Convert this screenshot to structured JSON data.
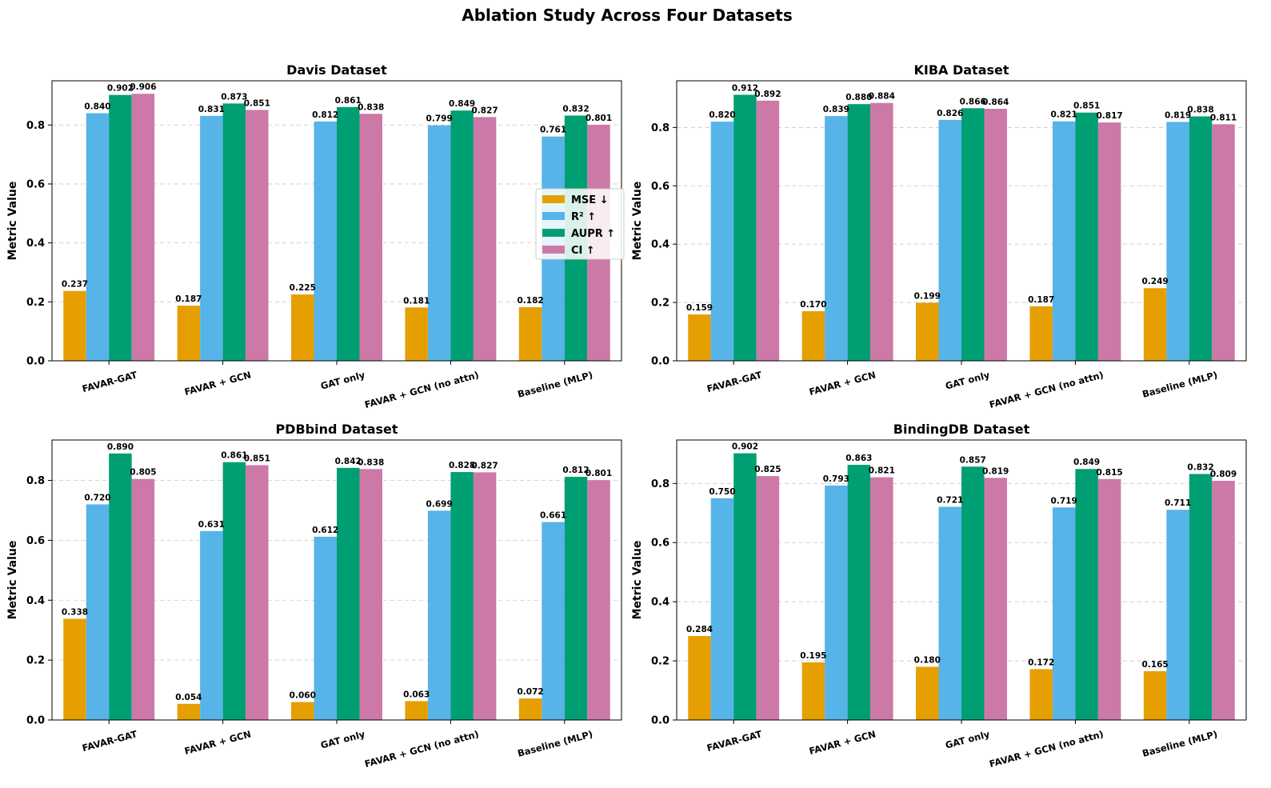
{
  "figure": {
    "title": "Ablation Study Across Four Datasets"
  },
  "chart_data": [
    {
      "type": "bar",
      "title": "Davis Dataset",
      "xlabel": "",
      "ylabel": "Metric Value",
      "ylim": [
        0,
        0.95
      ],
      "yticks": [
        "0.0",
        "0.2",
        "0.4",
        "0.6",
        "0.8"
      ],
      "grid": "y-dashed",
      "legend": "center-right",
      "categories": [
        "FAVAR-GAT",
        "FAVAR + GCN",
        "GAT only",
        "FAVAR + GCN (no attn)",
        "Baseline (MLP)"
      ],
      "series": [
        {
          "name": "MSE ↓",
          "color": "#E69F00",
          "values": [
            0.237,
            0.187,
            0.225,
            0.181,
            0.182
          ],
          "labels": [
            "0.237",
            "0.187",
            "0.225",
            "0.181",
            "0.182"
          ]
        },
        {
          "name": "R² ↑",
          "color": "#56B4E9",
          "values": [
            0.84,
            0.831,
            0.812,
            0.799,
            0.761
          ],
          "labels": [
            "0.840",
            "0.831",
            "0.812",
            "0.799",
            "0.761"
          ]
        },
        {
          "name": "AUPR ↑",
          "color": "#009E73",
          "values": [
            0.902,
            0.873,
            0.861,
            0.849,
            0.832
          ],
          "labels": [
            "0.902",
            "0.873",
            "0.861",
            "0.849",
            "0.832"
          ]
        },
        {
          "name": "CI ↑",
          "color": "#CC79A7",
          "values": [
            0.906,
            0.851,
            0.838,
            0.827,
            0.801
          ],
          "labels": [
            "0.906",
            "0.851",
            "0.838",
            "0.827",
            "0.801"
          ]
        }
      ]
    },
    {
      "type": "bar",
      "title": "KIBA Dataset",
      "xlabel": "",
      "ylabel": "Metric Value",
      "ylim": [
        0,
        0.96
      ],
      "yticks": [
        "0.0",
        "0.2",
        "0.4",
        "0.6",
        "0.8"
      ],
      "grid": "y-dashed",
      "legend": "none",
      "categories": [
        "FAVAR-GAT",
        "FAVAR + GCN",
        "GAT only",
        "FAVAR + GCN (no attn)",
        "Baseline (MLP)"
      ],
      "series": [
        {
          "name": "MSE ↓",
          "color": "#E69F00",
          "values": [
            0.159,
            0.17,
            0.199,
            0.187,
            0.249
          ],
          "labels": [
            "0.159",
            "0.170",
            "0.199",
            "0.187",
            "0.249"
          ]
        },
        {
          "name": "R² ↑",
          "color": "#56B4E9",
          "values": [
            0.82,
            0.839,
            0.826,
            0.821,
            0.819
          ],
          "labels": [
            "0.820",
            "0.839",
            "0.826",
            "0.821",
            "0.819"
          ]
        },
        {
          "name": "AUPR ↑",
          "color": "#009E73",
          "values": [
            0.912,
            0.88,
            0.866,
            0.851,
            0.838
          ],
          "labels": [
            "0.912",
            "0.880",
            "0.866",
            "0.851",
            "0.838"
          ]
        },
        {
          "name": "CI ↑",
          "color": "#CC79A7",
          "values": [
            0.892,
            0.884,
            0.864,
            0.817,
            0.811
          ],
          "labels": [
            "0.892",
            "0.884",
            "0.864",
            "0.817",
            "0.811"
          ]
        }
      ]
    },
    {
      "type": "bar",
      "title": "PDBbind Dataset",
      "xlabel": "",
      "ylabel": "Metric Value",
      "ylim": [
        0,
        0.935
      ],
      "yticks": [
        "0.0",
        "0.2",
        "0.4",
        "0.6",
        "0.8"
      ],
      "grid": "y-dashed",
      "legend": "none",
      "categories": [
        "FAVAR-GAT",
        "FAVAR + GCN",
        "GAT only",
        "FAVAR + GCN (no attn)",
        "Baseline (MLP)"
      ],
      "series": [
        {
          "name": "MSE ↓",
          "color": "#E69F00",
          "values": [
            0.338,
            0.054,
            0.06,
            0.063,
            0.072
          ],
          "labels": [
            "0.338",
            "0.054",
            "0.060",
            "0.063",
            "0.072"
          ]
        },
        {
          "name": "R² ↑",
          "color": "#56B4E9",
          "values": [
            0.72,
            0.631,
            0.612,
            0.699,
            0.661
          ],
          "labels": [
            "0.720",
            "0.631",
            "0.612",
            "0.699",
            "0.661"
          ]
        },
        {
          "name": "AUPR ↑",
          "color": "#009E73",
          "values": [
            0.89,
            0.861,
            0.842,
            0.828,
            0.812
          ],
          "labels": [
            "0.890",
            "0.861",
            "0.842",
            "0.828",
            "0.812"
          ]
        },
        {
          "name": "CI ↑",
          "color": "#CC79A7",
          "values": [
            0.805,
            0.851,
            0.838,
            0.827,
            0.801
          ],
          "labels": [
            "0.805",
            "0.851",
            "0.838",
            "0.827",
            "0.801"
          ]
        }
      ]
    },
    {
      "type": "bar",
      "title": "BindingDB Dataset",
      "xlabel": "",
      "ylabel": "Metric Value",
      "ylim": [
        0,
        0.947
      ],
      "yticks": [
        "0.0",
        "0.2",
        "0.4",
        "0.6",
        "0.8"
      ],
      "grid": "y-dashed",
      "legend": "none",
      "categories": [
        "FAVAR-GAT",
        "FAVAR + GCN",
        "GAT only",
        "FAVAR + GCN (no attn)",
        "Baseline (MLP)"
      ],
      "series": [
        {
          "name": "MSE ↓",
          "color": "#E69F00",
          "values": [
            0.284,
            0.195,
            0.18,
            0.172,
            0.165
          ],
          "labels": [
            "0.284",
            "0.195",
            "0.180",
            "0.172",
            "0.165"
          ]
        },
        {
          "name": "R² ↑",
          "color": "#56B4E9",
          "values": [
            0.75,
            0.793,
            0.721,
            0.719,
            0.711
          ],
          "labels": [
            "0.750",
            "0.793",
            "0.721",
            "0.719",
            "0.711"
          ]
        },
        {
          "name": "AUPR ↑",
          "color": "#009E73",
          "values": [
            0.902,
            0.863,
            0.857,
            0.849,
            0.832
          ],
          "labels": [
            "0.902",
            "0.863",
            "0.857",
            "0.849",
            "0.832"
          ]
        },
        {
          "name": "CI ↑",
          "color": "#CC79A7",
          "values": [
            0.825,
            0.821,
            0.819,
            0.815,
            0.809
          ],
          "labels": [
            "0.825",
            "0.821",
            "0.819",
            "0.815",
            "0.809"
          ]
        }
      ]
    }
  ]
}
